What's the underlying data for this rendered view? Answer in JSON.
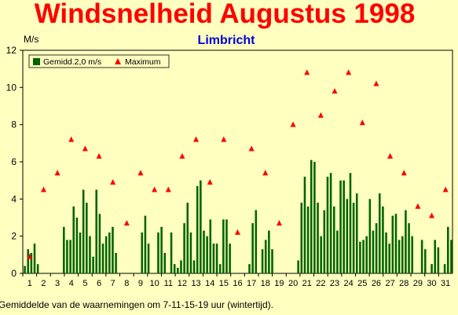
{
  "chart_data": {
    "type": "bar",
    "title": "Windsnelheid Augustus 1998",
    "subtitle": "Limbricht",
    "ylabel": "M/s",
    "footnote": "Gemiddelde van de waarnemingen om 7-11-15-19 uur (wintertijd).",
    "ylim": [
      0,
      12
    ],
    "yticks": [
      "0",
      "2",
      "4",
      "6",
      "8",
      "10",
      "12"
    ],
    "xticks": [
      "1",
      "2",
      "3",
      "4",
      "5",
      "6",
      "7",
      "8",
      "9",
      "10",
      "11",
      "12",
      "13",
      "14",
      "15",
      "16",
      "17",
      "18",
      "19",
      "20",
      "21",
      "22",
      "23",
      "24",
      "25",
      "26",
      "27",
      "28",
      "29",
      "30",
      "31"
    ],
    "grid": false,
    "legend_position": "top-left",
    "colors": {
      "background": "#ffffc0",
      "title": "#ff0000",
      "subtitle": "#0000dd",
      "bar": "#006400",
      "marker": "#ff0000"
    },
    "series": [
      {
        "name": "Gemidd.2,0 m/s",
        "kind": "bar",
        "values": [
          0.4,
          1.3,
          1.1,
          1.6,
          0.5,
          0,
          0,
          0,
          0,
          0,
          0,
          0,
          2.5,
          1.8,
          1.8,
          3.6,
          3.0,
          2.2,
          4.5,
          3.8,
          2.0,
          0.9,
          4.5,
          3.2,
          1.6,
          2.0,
          2.2,
          2.5,
          1.1,
          0,
          0,
          0,
          0,
          0,
          0,
          0,
          2.2,
          3.1,
          1.6,
          0,
          0,
          2.2,
          2.5,
          1.1,
          0,
          2.2,
          0.5,
          0.3,
          0.7,
          2.7,
          3.8,
          2.2,
          0.7,
          4.7,
          5.0,
          2.3,
          2.0,
          2.9,
          1.6,
          1.6,
          0.5,
          2.9,
          2.9,
          1.6,
          0,
          0,
          0,
          0,
          0,
          0.5,
          2.7,
          3.4,
          0,
          1.3,
          1.8,
          2.3,
          1.3,
          0,
          0,
          0,
          0,
          0,
          0,
          0,
          0.7,
          3.8,
          5.2,
          3.6,
          6.1,
          6.0,
          3.8,
          2.0,
          3.4,
          5.2,
          5.4,
          3.6,
          2.3,
          5.0,
          5.0,
          4.0,
          5.4,
          3.8,
          4.3,
          1.7,
          1.8,
          2.0,
          4.0,
          2.3,
          2.7,
          4.3,
          3.6,
          2.2,
          1.6,
          3.1,
          3.2,
          1.8,
          2.0,
          3.4,
          2.7,
          2.0,
          0,
          0,
          1.8,
          1.3,
          0,
          0.5,
          1.8,
          1.4,
          0,
          0.5,
          2.5,
          1.8
        ]
      },
      {
        "name": "Maximum",
        "kind": "marker",
        "values": [
          0.9,
          4.5,
          5.4,
          7.2,
          6.7,
          6.3,
          4.9,
          2.7,
          5.4,
          4.5,
          4.5,
          6.3,
          7.2,
          4.9,
          7.2,
          2.2,
          6.7,
          5.4,
          2.7,
          8.0,
          10.8,
          8.5,
          9.8,
          10.8,
          8.1,
          10.2,
          6.3,
          5.4,
          3.6,
          3.1,
          4.5
        ]
      }
    ]
  }
}
